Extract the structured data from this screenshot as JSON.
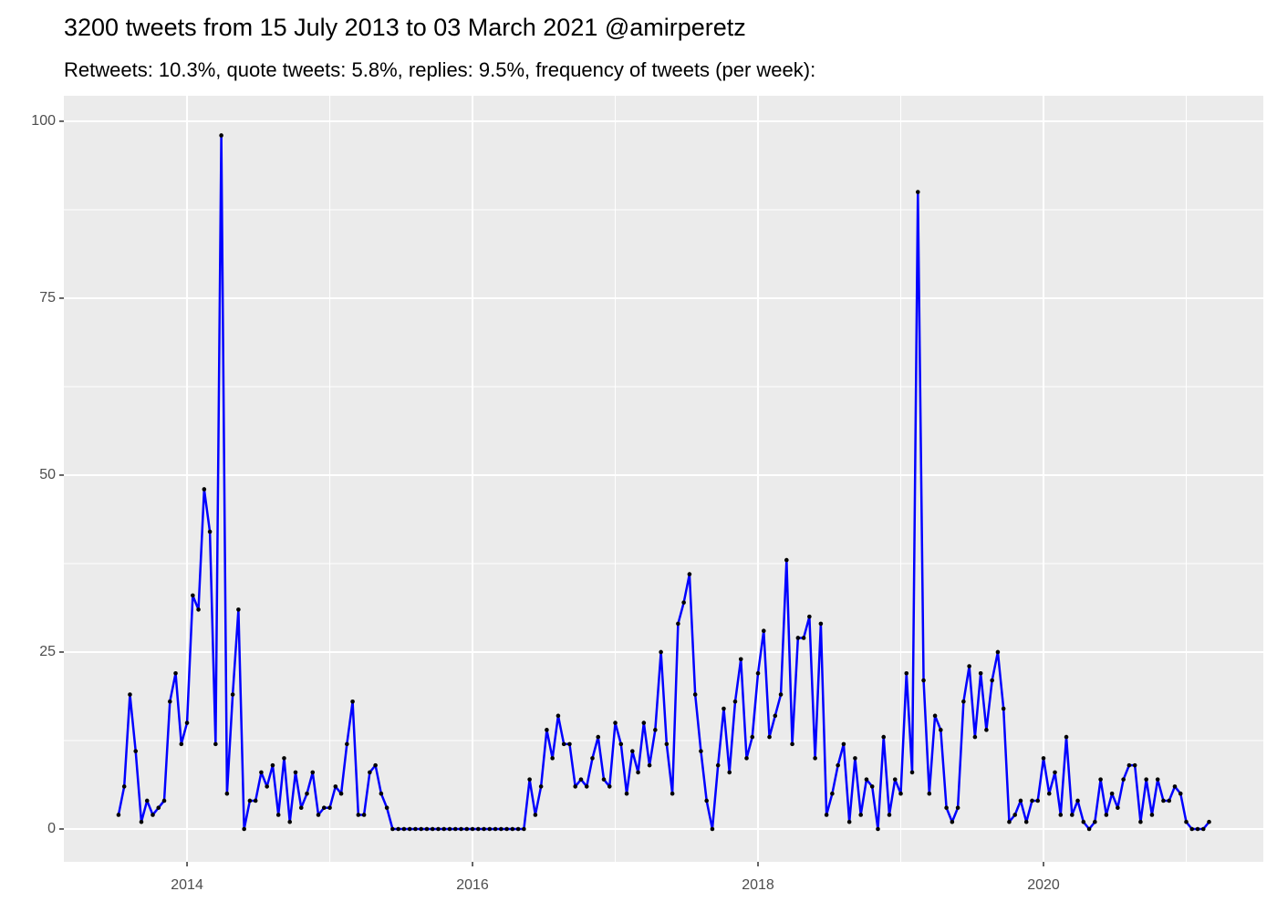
{
  "chart_data": {
    "type": "line",
    "title": "3200 tweets from 15 July 2013 to 03 March 2021 @amirperetz",
    "subtitle": "Retweets: 10.3%, quote tweets: 5.8%, replies: 9.5%, frequency of tweets (per week):",
    "x": [
      2013.52,
      2013.56,
      2013.6,
      2013.64,
      2013.68,
      2013.72,
      2013.76,
      2013.8,
      2013.84,
      2013.88,
      2013.92,
      2013.96,
      2014.0,
      2014.04,
      2014.08,
      2014.12,
      2014.16,
      2014.2,
      2014.24,
      2014.28,
      2014.32,
      2014.36,
      2014.4,
      2014.44,
      2014.48,
      2014.52,
      2014.56,
      2014.6,
      2014.64,
      2014.68,
      2014.72,
      2014.76,
      2014.8,
      2014.84,
      2014.88,
      2014.92,
      2014.96,
      2015.0,
      2015.04,
      2015.08,
      2015.12,
      2015.16,
      2015.2,
      2015.24,
      2015.28,
      2015.32,
      2015.36,
      2015.4,
      2015.44,
      2015.48,
      2015.52,
      2015.56,
      2015.6,
      2015.64,
      2015.68,
      2015.72,
      2015.76,
      2015.8,
      2015.84,
      2015.88,
      2015.92,
      2015.96,
      2016.0,
      2016.04,
      2016.08,
      2016.12,
      2016.16,
      2016.2,
      2016.24,
      2016.28,
      2016.32,
      2016.36,
      2016.4,
      2016.44,
      2016.48,
      2016.52,
      2016.56,
      2016.6,
      2016.64,
      2016.68,
      2016.72,
      2016.76,
      2016.8,
      2016.84,
      2016.88,
      2016.92,
      2016.96,
      2017.0,
      2017.04,
      2017.08,
      2017.12,
      2017.16,
      2017.2,
      2017.24,
      2017.28,
      2017.32,
      2017.36,
      2017.4,
      2017.44,
      2017.48,
      2017.52,
      2017.56,
      2017.6,
      2017.64,
      2017.68,
      2017.72,
      2017.76,
      2017.8,
      2017.84,
      2017.88,
      2017.92,
      2017.96,
      2018.0,
      2018.04,
      2018.08,
      2018.12,
      2018.16,
      2018.2,
      2018.24,
      2018.28,
      2018.32,
      2018.36,
      2018.4,
      2018.44,
      2018.48,
      2018.52,
      2018.56,
      2018.6,
      2018.64,
      2018.68,
      2018.72,
      2018.76,
      2018.8,
      2018.84,
      2018.88,
      2018.92,
      2018.96,
      2019.0,
      2019.04,
      2019.08,
      2019.12,
      2019.16,
      2019.2,
      2019.24,
      2019.28,
      2019.32,
      2019.36,
      2019.4,
      2019.44,
      2019.48,
      2019.52,
      2019.56,
      2019.6,
      2019.64,
      2019.68,
      2019.72,
      2019.76,
      2019.8,
      2019.84,
      2019.88,
      2019.92,
      2019.96,
      2020.0,
      2020.04,
      2020.08,
      2020.12,
      2020.16,
      2020.2,
      2020.24,
      2020.28,
      2020.32,
      2020.36,
      2020.4,
      2020.44,
      2020.48,
      2020.52,
      2020.56,
      2020.6,
      2020.64,
      2020.68,
      2020.72,
      2020.76,
      2020.8,
      2020.84,
      2020.88,
      2020.92,
      2020.96,
      2021.0,
      2021.04,
      2021.08,
      2021.12,
      2021.16
    ],
    "values": [
      2,
      6,
      19,
      11,
      1,
      4,
      2,
      3,
      4,
      18,
      22,
      12,
      15,
      33,
      31,
      48,
      42,
      12,
      98,
      5,
      19,
      31,
      0,
      4,
      4,
      8,
      6,
      9,
      2,
      10,
      1,
      8,
      3,
      5,
      8,
      2,
      3,
      3,
      6,
      5,
      12,
      18,
      2,
      2,
      8,
      9,
      5,
      3,
      0,
      0,
      0,
      0,
      0,
      0,
      0,
      0,
      0,
      0,
      0,
      0,
      0,
      0,
      0,
      0,
      0,
      0,
      0,
      0,
      0,
      0,
      0,
      0,
      7,
      2,
      6,
      14,
      10,
      16,
      12,
      12,
      6,
      7,
      6,
      10,
      13,
      7,
      6,
      15,
      12,
      5,
      11,
      8,
      15,
      9,
      14,
      25,
      12,
      5,
      29,
      32,
      36,
      19,
      11,
      4,
      0,
      9,
      17,
      8,
      18,
      24,
      10,
      13,
      22,
      28,
      13,
      16,
      19,
      38,
      12,
      27,
      27,
      30,
      10,
      29,
      2,
      5,
      9,
      12,
      1,
      10,
      2,
      7,
      6,
      0,
      13,
      2,
      7,
      5,
      22,
      8,
      90,
      21,
      5,
      16,
      14,
      3,
      1,
      3,
      18,
      23,
      13,
      22,
      14,
      21,
      25,
      17,
      1,
      2,
      4,
      1,
      4,
      4,
      10,
      5,
      8,
      2,
      13,
      2,
      4,
      1,
      0,
      1,
      7,
      2,
      5,
      3,
      7,
      9,
      9,
      1,
      7,
      2,
      7,
      4,
      4,
      6,
      5,
      1,
      0,
      0,
      0,
      1
    ],
    "color": "#0000ff",
    "point_color": "#000000",
    "xlim": [
      2013.137,
      2021.54
    ],
    "xticks": [
      2014,
      2016,
      2018,
      2020
    ],
    "ylim": [
      -4.64,
      103.6
    ],
    "yticks": [
      0,
      25,
      50,
      75,
      100
    ],
    "grid": true
  }
}
